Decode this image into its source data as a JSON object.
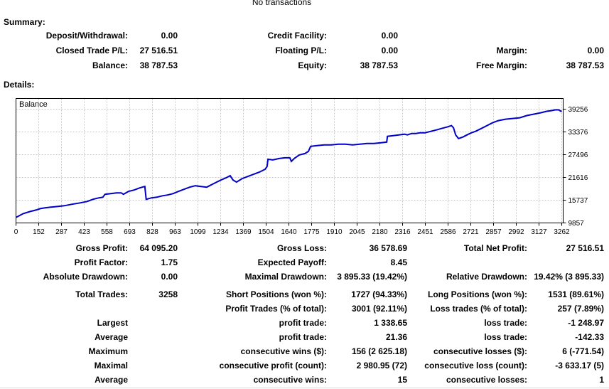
{
  "header": {
    "status_text": "No transactions"
  },
  "summary": {
    "title": "Summary:",
    "rows": [
      [
        "Deposit/Withdrawal:",
        "0.00",
        "Credit Facility:",
        "0.00",
        "",
        ""
      ],
      [
        "Closed Trade P/L:",
        "27 516.51",
        "Floating P/L:",
        "0.00",
        "Margin:",
        "0.00"
      ],
      [
        "Balance:",
        "38 787.53",
        "Equity:",
        "38 787.53",
        "Free Margin:",
        "38 787.53"
      ]
    ]
  },
  "details": {
    "title": "Details:",
    "rows": [
      [
        "Gross Profit:",
        "64 095.20",
        "Gross Loss:",
        "36 578.69",
        "Total Net Profit:",
        "27 516.51"
      ],
      [
        "Profit Factor:",
        "1.75",
        "Expected Payoff:",
        "8.45",
        "",
        ""
      ],
      [
        "Absolute Drawdown:",
        "0.00",
        "Maximal Drawdown:",
        "3 895.33 (19.42%)",
        "Relative Drawdown:",
        "19.42% (3 895.33)"
      ],
      [
        "Total Trades:",
        "3258",
        "Short Positions (won %):",
        "1727 (94.33%)",
        "Long Positions (won %):",
        "1531 (89.61%)"
      ],
      [
        "",
        "",
        "Profit Trades (% of total):",
        "3001 (92.11%)",
        "Loss trades (% of total):",
        "257 (7.89%)"
      ],
      [
        "Largest",
        "",
        "profit trade:",
        "1 338.65",
        "loss trade:",
        "-1 248.97"
      ],
      [
        "Average",
        "",
        "profit trade:",
        "21.36",
        "loss trade:",
        "-142.33"
      ],
      [
        "Maximum",
        "",
        "consecutive wins ($):",
        "156 (2 625.18)",
        "consecutive losses ($):",
        "6 (-771.54)"
      ],
      [
        "Maximal",
        "",
        "consecutive profit (count):",
        "2 980.95 (72)",
        "consecutive loss (count):",
        "-3 633.17 (5)"
      ],
      [
        "Average",
        "",
        "consecutive wins:",
        "15",
        "consecutive losses:",
        "1"
      ]
    ]
  },
  "chart_data": {
    "type": "line",
    "title": "Balance",
    "legend_position": "top-left-inside",
    "grid": true,
    "xlim": [
      0,
      3262
    ],
    "ylim": [
      9857,
      42000
    ],
    "x_ticks": [
      0,
      152,
      287,
      423,
      558,
      693,
      828,
      963,
      1099,
      1234,
      1369,
      1504,
      1640,
      1775,
      1910,
      2045,
      2180,
      2316,
      2451,
      2586,
      2721,
      2857,
      2992,
      3127,
      3262
    ],
    "y_ticks": [
      39256,
      33376,
      27496,
      21616,
      15737,
      9857
    ],
    "colors": {
      "curve": "#0000C8",
      "grid": "#C8C8C8",
      "axis": "#000000"
    },
    "series": [
      {
        "name": "Balance",
        "points": [
          [
            0,
            11271
          ],
          [
            43,
            12260
          ],
          [
            85,
            12815
          ],
          [
            119,
            13185
          ],
          [
            145,
            13555
          ],
          [
            170,
            13740
          ],
          [
            204,
            13925
          ],
          [
            247,
            14110
          ],
          [
            289,
            14295
          ],
          [
            332,
            14665
          ],
          [
            383,
            15035
          ],
          [
            425,
            15405
          ],
          [
            459,
            15960
          ],
          [
            493,
            16330
          ],
          [
            519,
            16515
          ],
          [
            532,
            17255
          ],
          [
            566,
            17440
          ],
          [
            600,
            17625
          ],
          [
            629,
            17625
          ],
          [
            642,
            17255
          ],
          [
            672,
            17995
          ],
          [
            706,
            18365
          ],
          [
            740,
            18920
          ],
          [
            770,
            19290
          ],
          [
            778,
            15960
          ],
          [
            808,
            16330
          ],
          [
            842,
            16515
          ],
          [
            876,
            16885
          ],
          [
            906,
            17070
          ],
          [
            940,
            17440
          ],
          [
            970,
            17995
          ],
          [
            1004,
            18550
          ],
          [
            1038,
            19105
          ],
          [
            1072,
            19475
          ],
          [
            1106,
            19290
          ],
          [
            1140,
            19105
          ],
          [
            1182,
            20030
          ],
          [
            1225,
            20950
          ],
          [
            1255,
            21510
          ],
          [
            1280,
            22060
          ],
          [
            1297,
            20950
          ],
          [
            1318,
            20400
          ],
          [
            1352,
            21320
          ],
          [
            1386,
            21875
          ],
          [
            1420,
            22430
          ],
          [
            1454,
            22985
          ],
          [
            1489,
            23725
          ],
          [
            1501,
            24465
          ],
          [
            1506,
            26315
          ],
          [
            1535,
            26130
          ],
          [
            1573,
            26500
          ],
          [
            1607,
            26685
          ],
          [
            1637,
            26685
          ],
          [
            1646,
            25760
          ],
          [
            1663,
            26500
          ],
          [
            1693,
            27425
          ],
          [
            1727,
            27795
          ],
          [
            1748,
            28350
          ],
          [
            1761,
            29640
          ],
          [
            1799,
            29825
          ],
          [
            1842,
            30010
          ],
          [
            1884,
            30010
          ],
          [
            1927,
            30195
          ],
          [
            1969,
            30195
          ],
          [
            2012,
            30010
          ],
          [
            2054,
            30195
          ],
          [
            2097,
            30380
          ],
          [
            2139,
            30380
          ],
          [
            2182,
            30565
          ],
          [
            2216,
            30750
          ],
          [
            2220,
            32230
          ],
          [
            2254,
            32415
          ],
          [
            2288,
            32600
          ],
          [
            2322,
            32785
          ],
          [
            2339,
            32600
          ],
          [
            2365,
            32970
          ],
          [
            2390,
            32970
          ],
          [
            2416,
            33155
          ],
          [
            2445,
            33155
          ],
          [
            2479,
            33525
          ],
          [
            2513,
            33895
          ],
          [
            2543,
            34265
          ],
          [
            2577,
            34635
          ],
          [
            2603,
            35005
          ],
          [
            2615,
            34450
          ],
          [
            2628,
            32600
          ],
          [
            2645,
            31675
          ],
          [
            2671,
            32045
          ],
          [
            2696,
            32600
          ],
          [
            2722,
            33155
          ],
          [
            2747,
            33525
          ],
          [
            2781,
            34265
          ],
          [
            2815,
            35005
          ],
          [
            2849,
            35745
          ],
          [
            2883,
            36300
          ],
          [
            2926,
            36670
          ],
          [
            2968,
            36855
          ],
          [
            3011,
            37040
          ],
          [
            3053,
            37595
          ],
          [
            3096,
            37965
          ],
          [
            3138,
            38335
          ],
          [
            3172,
            38705
          ],
          [
            3202,
            38890
          ],
          [
            3223,
            39070
          ],
          [
            3244,
            39070
          ],
          [
            3257,
            38705
          ],
          [
            3262,
            38788
          ]
        ]
      }
    ]
  }
}
